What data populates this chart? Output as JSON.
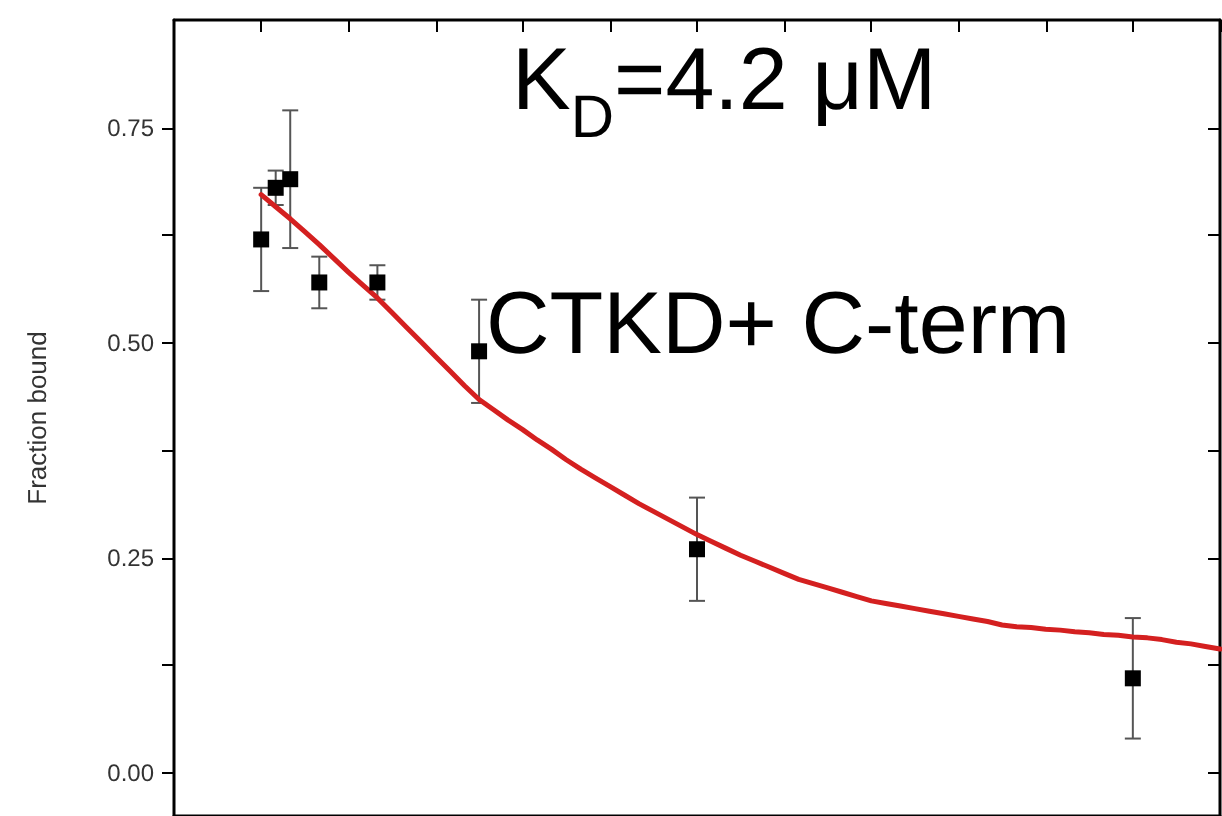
{
  "chart_data": {
    "type": "scatter",
    "ylabel": "Fraction bound",
    "annotations": [
      "K$_{D}$=4.2 μM",
      "CTKD+ C-term"
    ],
    "categories": [
      null,
      null,
      null,
      null,
      null,
      null,
      null,
      null,
      null,
      null,
      null,
      null,
      null,
      null,
      null,
      null,
      null,
      null,
      null,
      null,
      null,
      null,
      null,
      null,
      null,
      null,
      null,
      null,
      null,
      null,
      null,
      null,
      null,
      null,
      null,
      null,
      null,
      null,
      null,
      null,
      null,
      null,
      null,
      null,
      null,
      null,
      null,
      null,
      null,
      null,
      null,
      null,
      null,
      null,
      null,
      null,
      null,
      null,
      null,
      null,
      null,
      null,
      null,
      null,
      null,
      null,
      null,
      null,
      null,
      null,
      null,
      null,
      null
    ],
    "series": [
      {
        "color": "#000000",
        "marker": "square",
        "values": [
          null,
          null,
          null,
          null,
          null,
          null,
          0.62,
          0.68,
          0.69,
          null,
          0.57,
          null,
          null,
          null,
          0.57,
          null,
          null,
          null,
          null,
          null,
          null,
          0.49,
          null,
          null,
          null,
          null,
          null,
          null,
          null,
          null,
          null,
          null,
          null,
          null,
          null,
          null,
          0.26,
          null,
          null,
          null,
          null,
          null,
          null,
          null,
          null,
          null,
          null,
          null,
          null,
          null,
          null,
          null,
          null,
          null,
          null,
          null,
          null,
          null,
          null,
          null,
          null,
          null,
          null,
          null,
          null,
          null,
          0.11,
          null,
          null,
          null,
          null,
          null,
          null
        ],
        "errors": [
          null,
          null,
          null,
          null,
          null,
          null,
          0.06,
          0.02,
          0.08,
          null,
          0.03,
          null,
          null,
          null,
          0.02,
          null,
          null,
          null,
          null,
          null,
          null,
          0.06,
          null,
          null,
          null,
          null,
          null,
          null,
          null,
          null,
          null,
          null,
          null,
          null,
          null,
          null,
          0.06,
          null,
          null,
          null,
          null,
          null,
          null,
          null,
          null,
          null,
          null,
          null,
          null,
          null,
          null,
          null,
          null,
          null,
          null,
          null,
          null,
          null,
          null,
          null,
          null,
          null,
          null,
          null,
          null,
          null,
          0.07,
          null,
          null,
          null,
          null,
          null,
          null
        ]
      },
      {
        "type": "line",
        "color": "#d42020",
        "values": [
          null,
          null,
          null,
          null,
          null,
          null,
          0.672,
          0.658,
          0.644,
          0.629,
          0.614,
          0.598,
          0.582,
          0.567,
          0.552,
          0.535,
          0.518,
          0.501,
          0.484,
          0.467,
          0.45,
          0.434,
          0.422,
          0.41,
          0.399,
          0.387,
          0.376,
          0.364,
          0.353,
          0.343,
          0.333,
          0.323,
          0.313,
          0.304,
          0.295,
          0.286,
          0.277,
          0.269,
          0.261,
          0.253,
          0.246,
          0.239,
          0.232,
          0.225,
          0.22,
          0.215,
          0.21,
          0.205,
          0.2,
          0.197,
          0.194,
          0.191,
          0.188,
          0.185,
          0.182,
          0.179,
          0.176,
          0.172,
          0.17,
          0.169,
          0.167,
          0.166,
          0.164,
          0.163,
          0.161,
          0.16,
          0.158,
          0.157,
          0.155,
          0.152,
          0.15,
          0.147,
          0.144
        ]
      }
    ],
    "ylim": [
      -0.05,
      0.875
    ],
    "yticks": [
      {
        "value": 0,
        "label": "0.00"
      },
      {
        "value": 0.125,
        "label": null
      },
      {
        "value": 0.25,
        "label": "0.25"
      },
      {
        "value": 0.375,
        "label": null
      },
      {
        "value": 0.5,
        "label": "0.50"
      },
      {
        "value": 0.625,
        "label": null
      },
      {
        "value": 0.75,
        "label": "0.75"
      }
    ],
    "tick_labels": "y"
  }
}
